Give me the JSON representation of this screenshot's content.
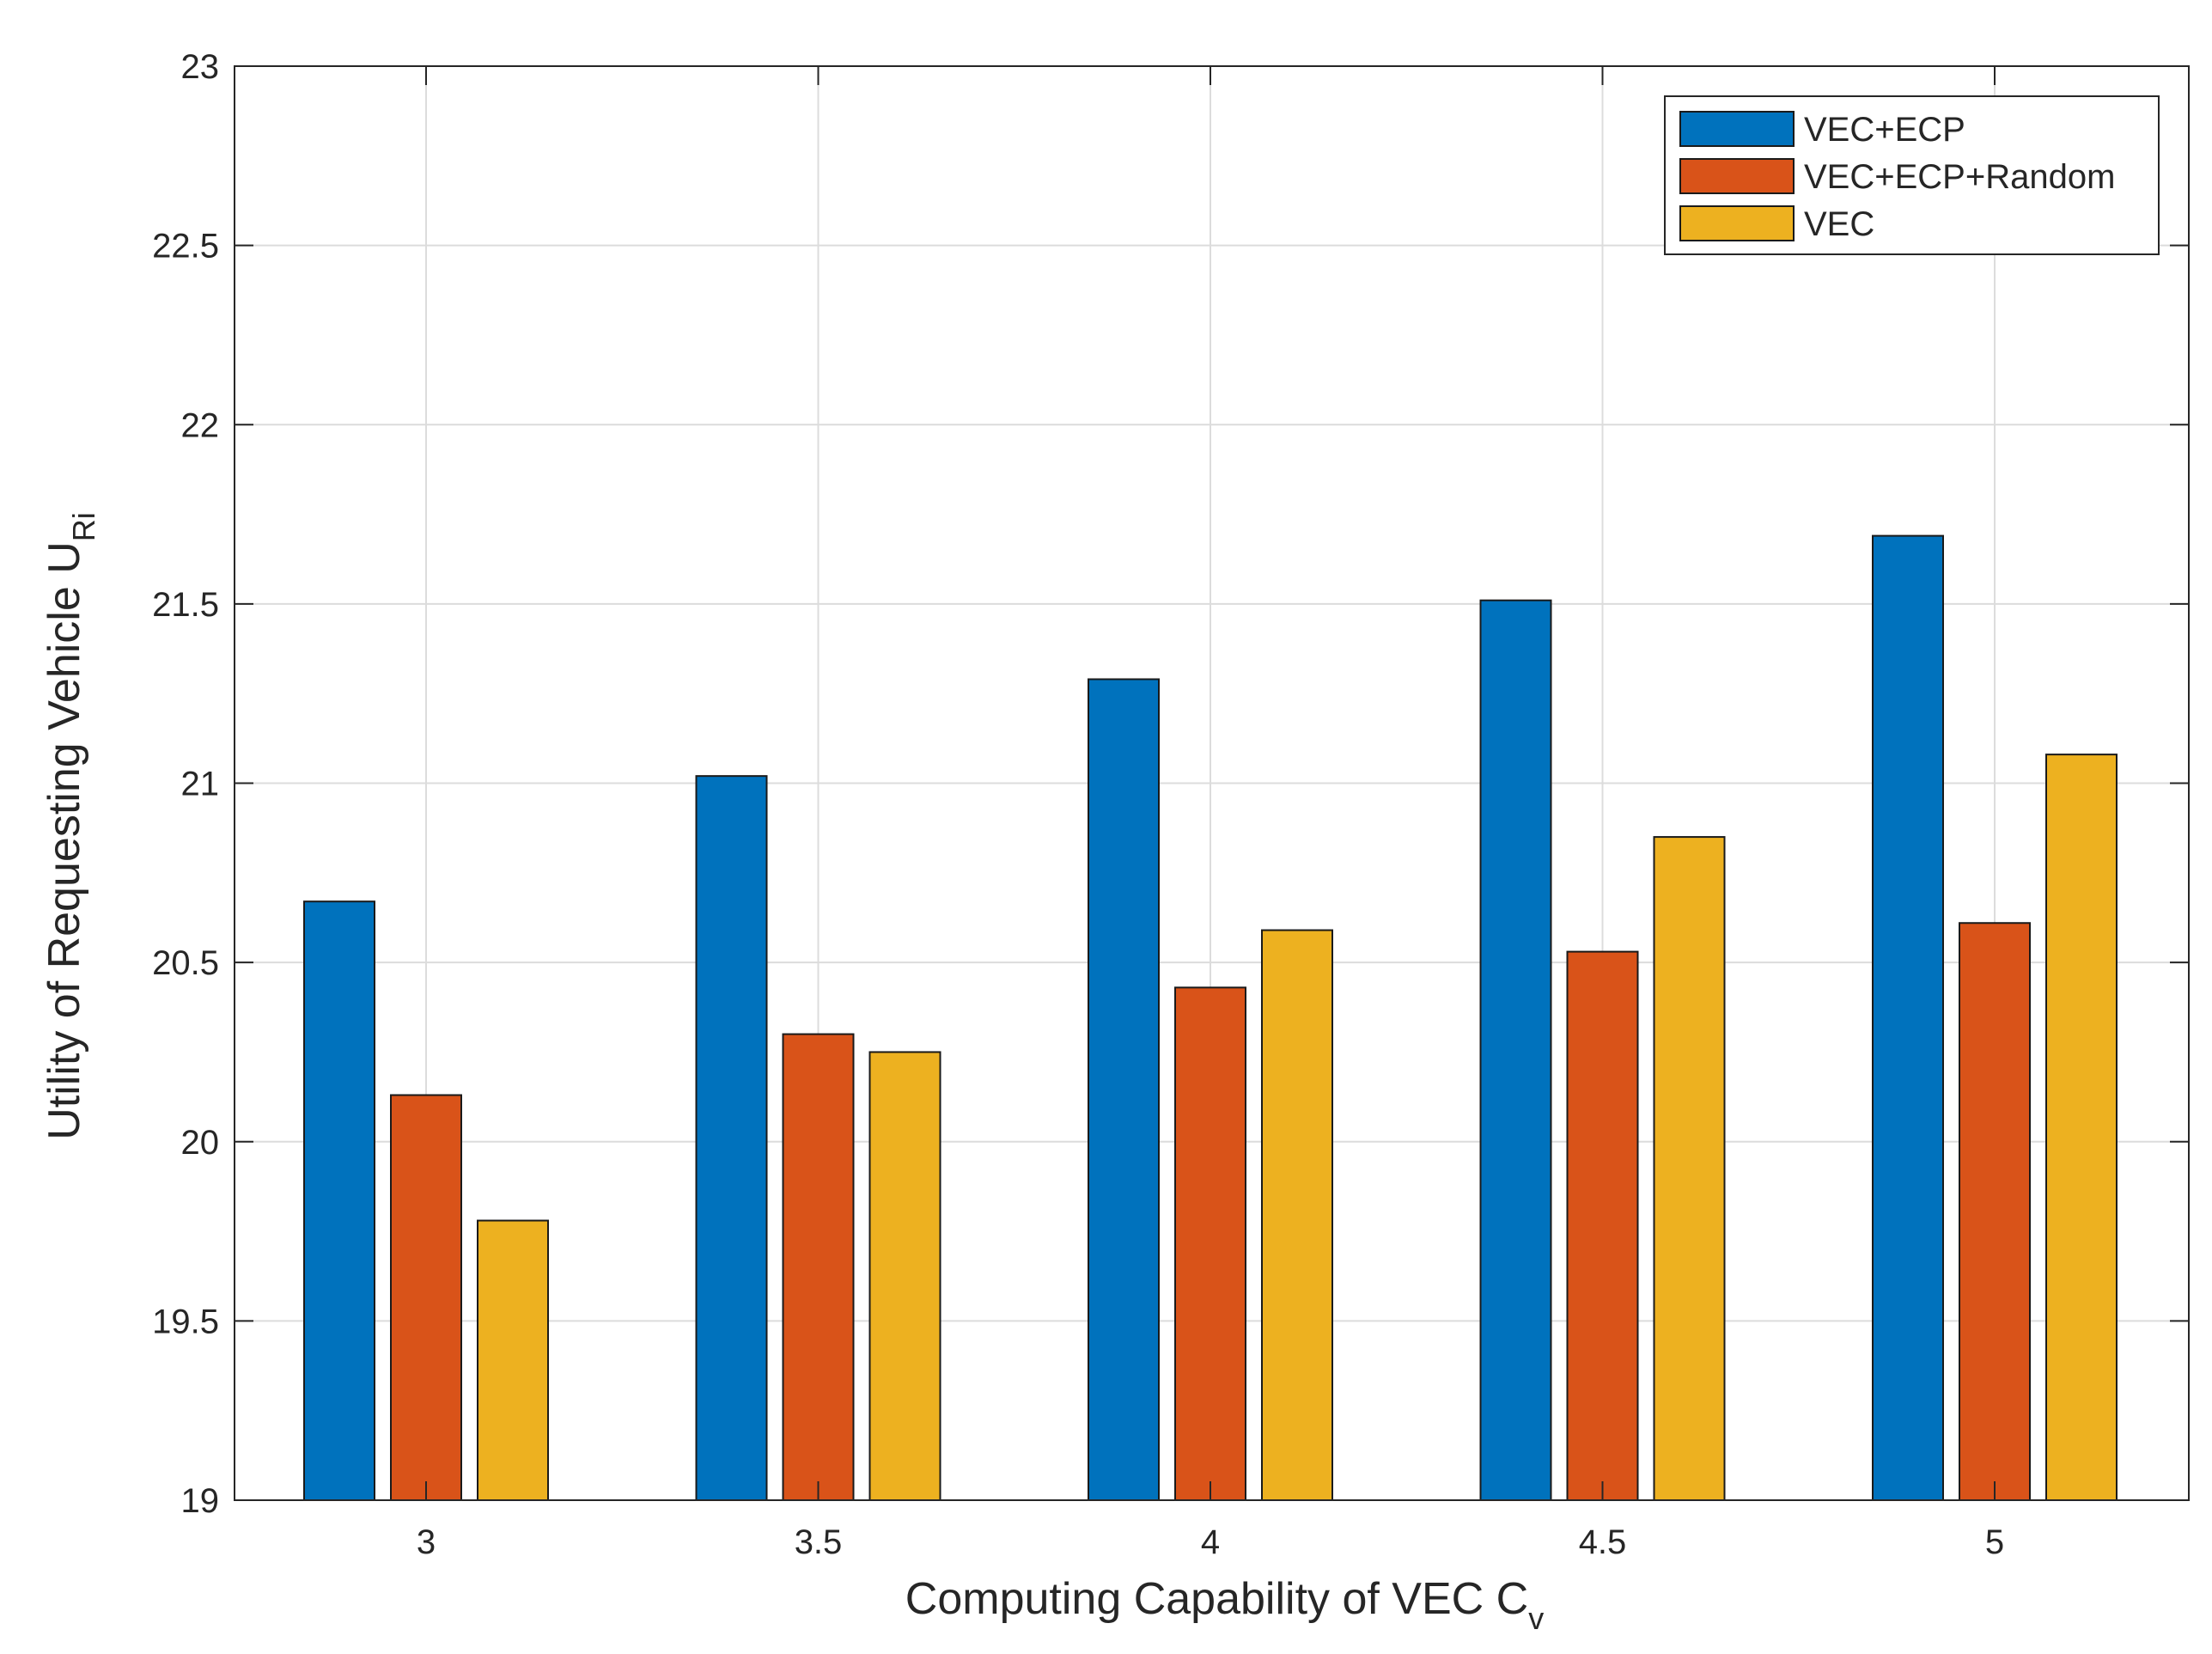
{
  "chart_data": {
    "type": "bar",
    "title": "",
    "xlabel": {
      "text": "Computing Capability of VEC C",
      "subscript": "v"
    },
    "ylabel": {
      "text": "Utility of Requesting Vehicle U",
      "subscript": "Ri"
    },
    "categories": [
      "3",
      "3.5",
      "4",
      "4.5",
      "5"
    ],
    "ylim": [
      19,
      23
    ],
    "yticks": [
      "19",
      "19.5",
      "20",
      "20.5",
      "21",
      "21.5",
      "22",
      "22.5",
      "23"
    ],
    "grid": true,
    "legend_position": "top-right",
    "series": [
      {
        "name": "VEC+ECP",
        "color": "#0072BD",
        "values": [
          20.67,
          21.02,
          21.29,
          21.51,
          21.69
        ]
      },
      {
        "name": "VEC+ECP+Random",
        "color": "#D95319",
        "values": [
          20.13,
          20.3,
          20.43,
          20.53,
          20.61
        ]
      },
      {
        "name": "VEC",
        "color": "#EDB120",
        "values": [
          19.78,
          20.25,
          20.59,
          20.85,
          21.08
        ]
      }
    ]
  }
}
